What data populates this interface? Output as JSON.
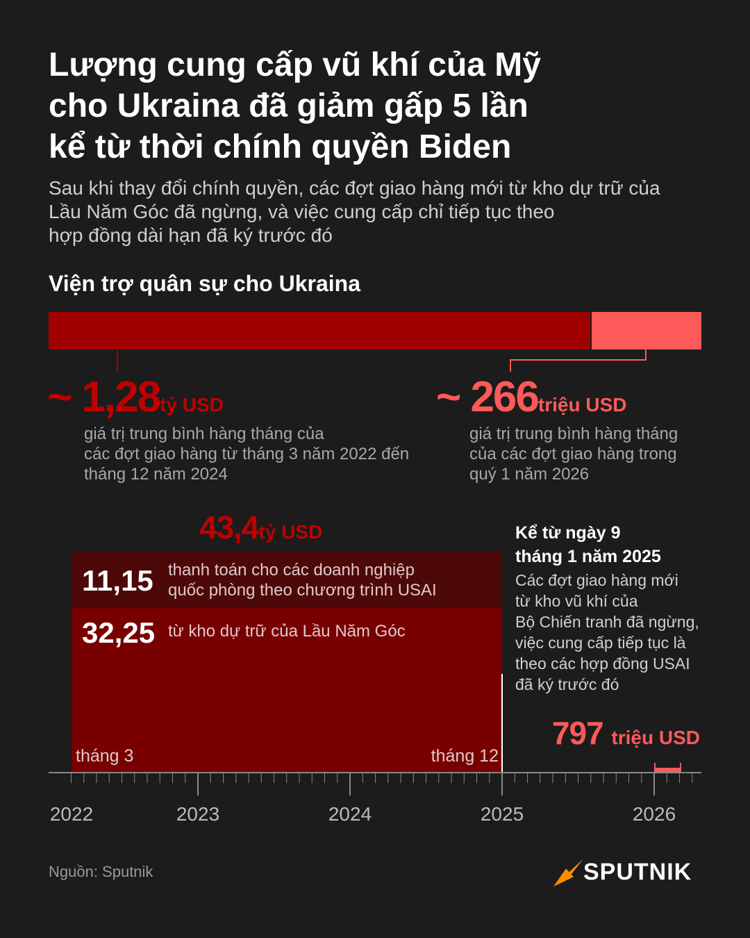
{
  "header": {
    "title": [
      "Lượng cung cấp vũ khí của Mỹ",
      "cho Ukraina đã giảm gấp 5 lần",
      "kể từ thời chính quyền Biden"
    ],
    "subtitle": [
      "Sau khi thay đổi chính quyền, các đợt giao hàng mới từ kho dự trữ của",
      "Lầu Năm Góc đã ngừng, và việc cung cấp chỉ tiếp tục theo",
      "hợp đồng dài hạn đã ký trước đó"
    ]
  },
  "section_title": "Viện trợ quân sự cho Ukraina",
  "monthly": [
    {
      "prefix": "~",
      "value": "1,28",
      "unit": "tỷ USD",
      "description": [
        "giá trị trung bình hàng tháng của",
        "các đợt giao hàng từ tháng 3 năm 2022 đến",
        "tháng 12 năm 2024"
      ]
    },
    {
      "prefix": "~",
      "value": "266",
      "unit": "triệu USD",
      "description": [
        "giá trị trung bình hàng tháng",
        "của các đợt giao hàng trong",
        "quý 1 năm 2026"
      ]
    }
  ],
  "total": {
    "value": "43,4",
    "unit": "tỷ USD"
  },
  "parts": [
    {
      "value": "11,15",
      "label": [
        "thanh toán cho các doanh nghiệp",
        "quốc phòng theo chương trình USAI"
      ]
    },
    {
      "value": "32,25",
      "label": [
        "từ kho dự trữ của Lầu Năm Góc"
      ]
    }
  ],
  "month_labels": [
    "tháng 3",
    "tháng 12"
  ],
  "note": {
    "title": [
      "Kể từ ngày 9",
      "tháng 1 năm 2025"
    ],
    "text": [
      "Các đợt giao hàng mới",
      "từ kho vũ khí của",
      "Bộ Chiến tranh đã ngừng,",
      "việc cung cấp tiếp tục là",
      "theo các hợp đồng USAI",
      "đã ký trước đó"
    ]
  },
  "recent": {
    "value": "797",
    "unit": "triệu USD"
  },
  "years": [
    "2022",
    "2023",
    "2024",
    "2025",
    "2026"
  ],
  "source": "Nguồn: Sputnik",
  "logo": "SPUTNIK"
}
